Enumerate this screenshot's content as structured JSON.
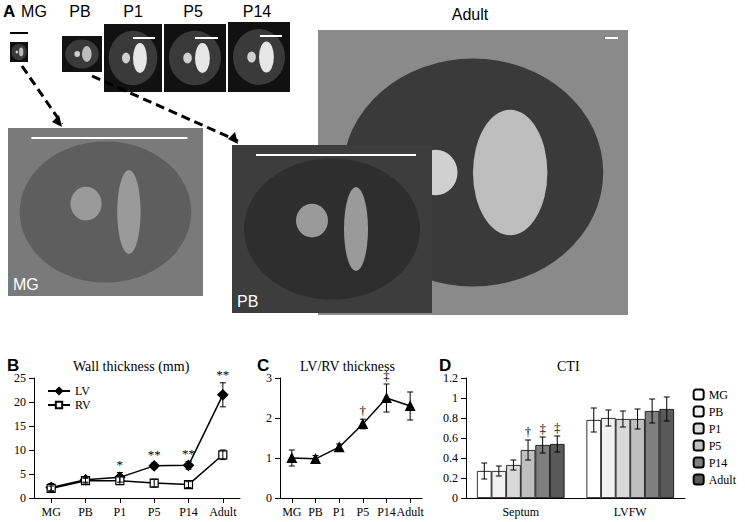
{
  "panel_a": {
    "label": "A",
    "images": [
      "MG",
      "PB",
      "P1",
      "P5",
      "P14",
      "Adult"
    ],
    "insets": [
      "MG",
      "PB"
    ]
  },
  "chart_data": [
    {
      "type": "line",
      "annotations": [
        "B"
      ],
      "title": "Wall thickness (mm)",
      "categories": [
        "MG",
        "PB",
        "P1",
        "P5",
        "P14",
        "Adult"
      ],
      "ylim": [
        0,
        25
      ],
      "yticks": [
        0,
        5,
        10,
        15,
        20,
        25
      ],
      "legend": "top-left",
      "series": [
        {
          "name": "LV",
          "color": "#000000",
          "marker": "diamond",
          "values": [
            2.2,
            3.8,
            4.3,
            6.7,
            6.8,
            21.5
          ],
          "errors": [
            0.8,
            0.5,
            1.0,
            0.6,
            0.8,
            2.5
          ],
          "annotations": [
            null,
            null,
            "*",
            "**",
            "**",
            "**"
          ]
        },
        {
          "name": "RV",
          "color": "#000000",
          "marker": "square-open",
          "values": [
            2.0,
            3.6,
            3.6,
            3.1,
            2.8,
            9.0
          ],
          "errors": [
            0.5,
            0.5,
            0.8,
            0.8,
            0.6,
            1.0
          ],
          "annotations": [
            null,
            null,
            null,
            null,
            null,
            null
          ]
        }
      ]
    },
    {
      "type": "line",
      "annotations": [
        "C"
      ],
      "title": "LV/RV thickness",
      "categories": [
        "MG",
        "PB",
        "P1",
        "P5",
        "P14",
        "Adult"
      ],
      "ylim": [
        0,
        3
      ],
      "yticks": [
        0,
        1,
        2,
        3
      ],
      "color": "#000000",
      "marker": "triangle",
      "values": [
        1.0,
        0.98,
        1.27,
        1.85,
        2.5,
        2.3
      ],
      "errors": [
        0.2,
        0.08,
        0.08,
        0.12,
        0.35,
        0.35
      ],
      "value_annotations": [
        null,
        null,
        null,
        "†",
        "‡",
        null
      ]
    },
    {
      "type": "bar",
      "annotations": [
        "D"
      ],
      "title": "CTI",
      "categories": [
        "Septum",
        "LVFW"
      ],
      "ylim": [
        0,
        1.2
      ],
      "yticks": [
        0,
        0.2,
        0.4,
        0.6,
        0.8,
        1,
        1.2
      ],
      "legend": "right",
      "series": [
        {
          "name": "MG",
          "color": "#ffffff",
          "values": [
            0.27,
            0.78
          ],
          "errors": [
            0.08,
            0.12
          ],
          "annotations": [
            null,
            null
          ]
        },
        {
          "name": "PB",
          "color": "#f2f2f2",
          "values": [
            0.27,
            0.8
          ],
          "errors": [
            0.05,
            0.08
          ],
          "annotations": [
            null,
            null
          ]
        },
        {
          "name": "P1",
          "color": "#d9d9d9",
          "values": [
            0.33,
            0.79
          ],
          "errors": [
            0.05,
            0.08
          ],
          "annotations": [
            null,
            null
          ]
        },
        {
          "name": "P5",
          "color": "#bfbfbf",
          "values": [
            0.48,
            0.79
          ],
          "errors": [
            0.1,
            0.1
          ],
          "annotations": [
            "†",
            null
          ]
        },
        {
          "name": "P14",
          "color": "#7f7f7f",
          "values": [
            0.53,
            0.87
          ],
          "errors": [
            0.08,
            0.12
          ],
          "annotations": [
            "‡",
            null
          ]
        },
        {
          "name": "Adult",
          "color": "#595959",
          "values": [
            0.54,
            0.89
          ],
          "errors": [
            0.08,
            0.12
          ],
          "annotations": [
            "‡",
            null
          ]
        }
      ]
    }
  ]
}
